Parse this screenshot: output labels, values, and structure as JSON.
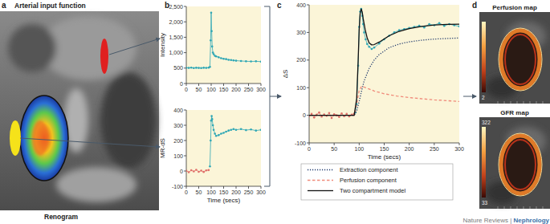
{
  "chart_data": [
    {
      "type": "line",
      "ylabel": "Intensity",
      "xlim": [
        0,
        300
      ],
      "ylim": [
        0,
        2500
      ],
      "xticks": [
        0,
        50,
        100,
        150,
        200,
        250,
        300
      ],
      "yticks": [
        0,
        500,
        {
          "value": 1000,
          "label": "1,000"
        },
        {
          "value": 1500,
          "label": "1,500"
        },
        {
          "value": 2000,
          "label": "2,000"
        },
        {
          "value": 2500,
          "label": "2,500"
        }
      ],
      "grid": false,
      "x": [
        0,
        10,
        20,
        30,
        40,
        50,
        60,
        70,
        80,
        90,
        95,
        98,
        100,
        102,
        104,
        107,
        110,
        115,
        120,
        130,
        140,
        150,
        160,
        170,
        180,
        190,
        200,
        220,
        240,
        260,
        280,
        300
      ],
      "series": [
        {
          "color": "#2fa7b5",
          "marker": "circle",
          "line_style": "solid",
          "values": [
            510,
            505,
            515,
            500,
            510,
            505,
            500,
            510,
            505,
            515,
            540,
            1400,
            2300,
            1700,
            1200,
            1000,
            950,
            900,
            880,
            850,
            820,
            800,
            790,
            770,
            760,
            750,
            740,
            730,
            720,
            715,
            720,
            710
          ]
        }
      ]
    },
    {
      "type": "line",
      "ylabel": "MR-dS",
      "xlabel": "Time (secs)",
      "xlim": [
        0,
        300
      ],
      "ylim": [
        -100,
        400
      ],
      "xticks": [
        0,
        50,
        100,
        150,
        200,
        250,
        300
      ],
      "yticks": [
        -100,
        0,
        100,
        200,
        300,
        400
      ],
      "grid": false,
      "series": [
        {
          "color": "#e0706a",
          "marker": "circle",
          "line_style": "solid",
          "x": [
            0,
            10,
            20,
            30,
            40,
            50,
            60,
            70,
            80,
            90
          ],
          "values": [
            2,
            -8,
            5,
            -3,
            8,
            -5,
            3,
            -6,
            4,
            6
          ]
        },
        {
          "color": "#2fa7b5",
          "marker": "circle",
          "line_style": "solid",
          "x": [
            95,
            98,
            100,
            102,
            104,
            107,
            110,
            115,
            120,
            130,
            140,
            150,
            160,
            170,
            180,
            190,
            200,
            220,
            240,
            260,
            280,
            300
          ],
          "values": [
            30,
            200,
            330,
            360,
            340,
            300,
            270,
            245,
            230,
            235,
            245,
            250,
            258,
            265,
            270,
            275,
            270,
            275,
            268,
            272,
            265,
            270
          ]
        }
      ]
    },
    {
      "type": "line",
      "ylabel": "ΔS",
      "xlabel": "Time (secs)",
      "xlim": [
        0,
        300
      ],
      "ylim": [
        -100,
        400
      ],
      "xticks": [
        0,
        50,
        100,
        150,
        200,
        250,
        300
      ],
      "yticks": [
        -100,
        0,
        100,
        200,
        300,
        400
      ],
      "grid": false,
      "legend": "bottom",
      "series": [
        {
          "color": "#e0706a",
          "marker": "circle",
          "line_style": "solid",
          "x": [
            0,
            5,
            10,
            15,
            20,
            25,
            30,
            35,
            40,
            45,
            50,
            55,
            60,
            65,
            70,
            75,
            80,
            85,
            90
          ],
          "values": [
            -3,
            5,
            -8,
            2,
            10,
            -5,
            3,
            -2,
            8,
            -10,
            4,
            0,
            -6,
            7,
            -3,
            5,
            -4,
            2,
            6
          ]
        },
        {
          "color": "#2fa7b5",
          "marker": "circle",
          "line_style": "solid",
          "x": [
            92,
            95,
            98,
            100,
            102,
            104,
            106,
            108,
            110,
            113,
            116,
            120,
            125,
            130,
            140,
            150,
            160,
            170,
            180,
            190,
            200,
            210,
            220,
            230,
            240,
            250,
            260,
            270,
            280,
            290,
            300
          ],
          "values": [
            10,
            40,
            180,
            320,
            375,
            385,
            360,
            330,
            300,
            275,
            258,
            248,
            240,
            245,
            260,
            275,
            288,
            300,
            308,
            312,
            316,
            320,
            324,
            318,
            330,
            326,
            334,
            324,
            330,
            326,
            322
          ]
        },
        {
          "name": "Extraction component",
          "color": "#1f3a6e",
          "marker": "none",
          "line_style": "dotted",
          "x": [
            0,
            90,
            95,
            100,
            105,
            110,
            120,
            130,
            140,
            160,
            180,
            200,
            225,
            250,
            275,
            300
          ],
          "values": [
            0,
            0,
            15,
            50,
            90,
            125,
            170,
            200,
            220,
            245,
            258,
            266,
            272,
            276,
            278,
            280
          ]
        },
        {
          "name": "Perfusion component",
          "color": "#f08a7a",
          "marker": "none",
          "line_style": "dashed",
          "x": [
            0,
            90,
            95,
            100,
            105,
            110,
            120,
            130,
            150,
            175,
            200,
            250,
            300
          ],
          "values": [
            0,
            0,
            40,
            90,
            105,
            102,
            95,
            88,
            78,
            70,
            64,
            56,
            50
          ]
        },
        {
          "name": "Two compartment model",
          "color": "#111111",
          "marker": "none",
          "line_style": "solid",
          "x": [
            0,
            90,
            95,
            98,
            100,
            102,
            104,
            106,
            108,
            112,
            116,
            120,
            125,
            130,
            140,
            160,
            180,
            200,
            225,
            250,
            275,
            300
          ],
          "values": [
            0,
            0,
            60,
            200,
            310,
            370,
            385,
            375,
            350,
            310,
            280,
            262,
            255,
            256,
            265,
            288,
            304,
            314,
            322,
            327,
            329,
            330
          ]
        }
      ]
    }
  ],
  "panels": {
    "a": {
      "label": "a",
      "title": "Arterial input function",
      "caption": "Renogram"
    },
    "b": {
      "label": "b"
    },
    "c": {
      "label": "c"
    },
    "d": {
      "label": "d",
      "maps": [
        {
          "title": "Perfusion map",
          "colorbar_labels": {
            "bottom": 2
          }
        },
        {
          "title": "GFR map",
          "colorbar_labels": {
            "top": 322,
            "bottom": 33
          }
        }
      ]
    }
  },
  "footer": {
    "journal": "Nature Reviews",
    "separator": " | ",
    "subject": "Nephrology"
  }
}
